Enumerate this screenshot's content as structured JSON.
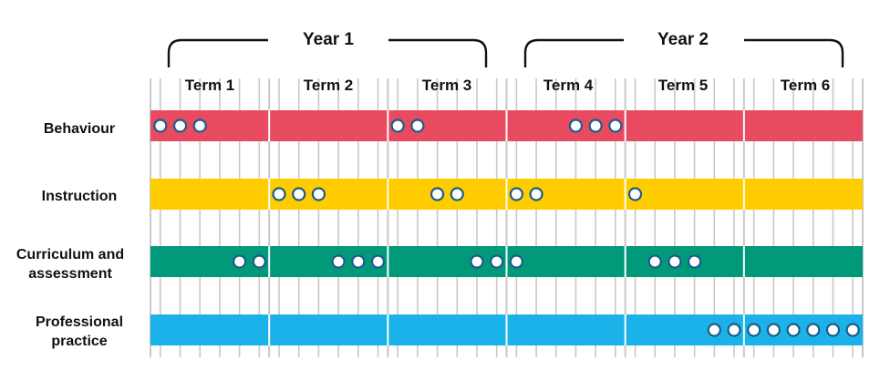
{
  "years": [
    {
      "label": "Year 1"
    },
    {
      "label": "Year 2"
    }
  ],
  "terms": [
    "Term 1",
    "Term 2",
    "Term 3",
    "Term 4",
    "Term 5",
    "Term 6"
  ],
  "weeks_per_term": 6,
  "colors": {
    "grid": "#c8c8c8",
    "divider": "#ffffff",
    "bracket": "#111111",
    "dot_fill": "#ffffff",
    "dot_stroke": "#1d5c8a"
  },
  "rows": [
    {
      "label": "Behaviour",
      "color": "#e84a5f",
      "dots_by_term": [
        [
          1,
          2,
          3
        ],
        [],
        [
          1,
          2
        ],
        [
          4,
          5,
          6
        ],
        [],
        []
      ]
    },
    {
      "label": "Instruction",
      "color": "#ffcc00",
      "dots_by_term": [
        [],
        [
          1,
          2,
          3
        ],
        [
          3,
          4
        ],
        [
          1,
          2
        ],
        [
          1
        ],
        []
      ]
    },
    {
      "label": "Curriculum and assessment",
      "color": "#009a7b",
      "dots_by_term": [
        [
          5,
          6
        ],
        [
          4,
          5,
          6
        ],
        [
          5,
          6
        ],
        [
          1
        ],
        [
          2,
          3,
          4
        ],
        []
      ]
    },
    {
      "label": "Professional practice",
      "color": "#1ab2e8",
      "dots_by_term": [
        [],
        [],
        [],
        [],
        [
          5,
          6
        ],
        [
          1,
          2,
          3,
          4,
          5,
          6
        ]
      ]
    }
  ]
}
